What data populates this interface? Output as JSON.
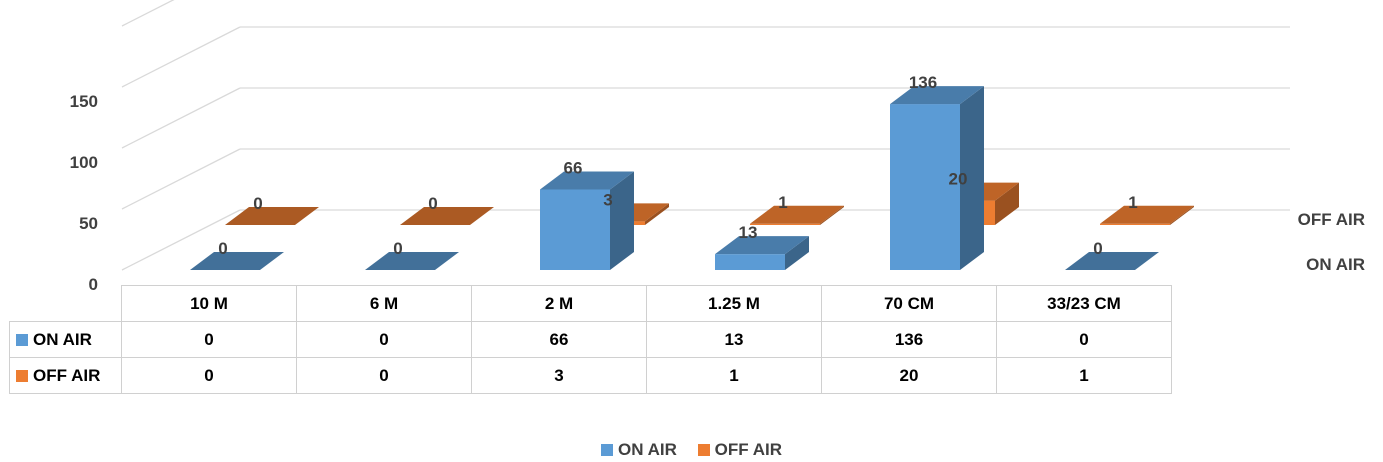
{
  "chart_data": {
    "type": "bar",
    "categories": [
      "10 M",
      "6 M",
      "2 M",
      "1.25 M",
      "70 CM",
      "33/23 CM"
    ],
    "series": [
      {
        "name": "ON AIR",
        "values": [
          0,
          0,
          66,
          13,
          136,
          0
        ],
        "color": "#5b9bd5"
      },
      {
        "name": "OFF AIR",
        "values": [
          0,
          0,
          3,
          1,
          20,
          1
        ],
        "color": "#ed7d31"
      }
    ],
    "y_ticks": [
      "0",
      "50",
      "100",
      "150"
    ],
    "ylim": [
      0,
      150
    ],
    "grid": true,
    "legend_position": "bottom",
    "data_table": true,
    "style": "3d-column"
  }
}
